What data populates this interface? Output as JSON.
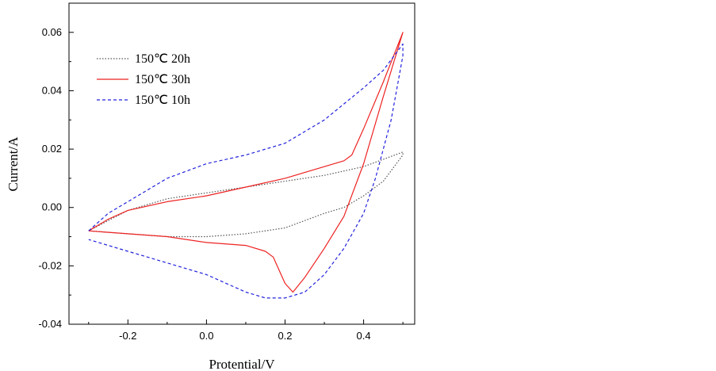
{
  "chart_data": {
    "type": "line",
    "xlabel": "Protential/V",
    "ylabel": "Current/A",
    "xlim": [
      -0.35,
      0.53
    ],
    "ylim": [
      -0.04,
      0.07
    ],
    "xticks": [
      -0.2,
      0.0,
      0.2,
      0.4
    ],
    "xtick_labels": [
      "-0.2",
      "0.0",
      "0.2",
      "0.4"
    ],
    "yticks": [
      -0.04,
      -0.02,
      0.0,
      0.02,
      0.04,
      0.06
    ],
    "ytick_labels": [
      "-0.04",
      "-0.02",
      "0.00",
      "0.02",
      "0.04",
      "0.06"
    ],
    "grid": false,
    "legend_position": "top-left",
    "series": [
      {
        "name": "150℃ 20h",
        "color": "#555555",
        "style": "dotted",
        "x": [
          -0.3,
          -0.2,
          -0.1,
          0.0,
          0.1,
          0.2,
          0.3,
          0.4,
          0.5,
          0.5,
          0.45,
          0.4,
          0.35,
          0.3,
          0.2,
          0.1,
          0.0,
          -0.1,
          -0.2,
          -0.3
        ],
        "y": [
          -0.008,
          -0.001,
          0.003,
          0.005,
          0.007,
          0.009,
          0.011,
          0.014,
          0.019,
          0.018,
          0.009,
          0.004,
          0.0,
          -0.002,
          -0.007,
          -0.009,
          -0.01,
          -0.01,
          -0.009,
          -0.008
        ]
      },
      {
        "name": "150℃ 30h",
        "color": "#ee2222",
        "style": "solid",
        "x": [
          -0.3,
          -0.25,
          -0.2,
          -0.1,
          0.0,
          0.1,
          0.2,
          0.3,
          0.35,
          0.37,
          0.4,
          0.45,
          0.5,
          0.45,
          0.4,
          0.35,
          0.3,
          0.25,
          0.22,
          0.2,
          0.17,
          0.15,
          0.1,
          0.0,
          -0.1,
          -0.2,
          -0.3
        ],
        "y": [
          -0.008,
          -0.004,
          -0.001,
          0.002,
          0.004,
          0.007,
          0.01,
          0.014,
          0.016,
          0.018,
          0.027,
          0.043,
          0.06,
          0.038,
          0.015,
          -0.003,
          -0.014,
          -0.024,
          -0.029,
          -0.026,
          -0.017,
          -0.015,
          -0.013,
          -0.012,
          -0.01,
          -0.009,
          -0.008
        ]
      },
      {
        "name": "150℃ 10h",
        "color": "#2222dd",
        "style": "dashed",
        "x": [
          -0.3,
          -0.25,
          -0.2,
          -0.1,
          0.0,
          0.1,
          0.2,
          0.3,
          0.4,
          0.45,
          0.5,
          0.5,
          0.47,
          0.43,
          0.4,
          0.35,
          0.3,
          0.25,
          0.2,
          0.15,
          0.1,
          0.0,
          -0.1,
          -0.2,
          -0.3
        ],
        "y": [
          -0.008,
          -0.002,
          0.002,
          0.01,
          0.015,
          0.018,
          0.022,
          0.03,
          0.041,
          0.047,
          0.056,
          0.052,
          0.03,
          0.01,
          -0.002,
          -0.014,
          -0.023,
          -0.029,
          -0.031,
          -0.031,
          -0.029,
          -0.023,
          -0.019,
          -0.015,
          -0.011
        ]
      }
    ]
  }
}
